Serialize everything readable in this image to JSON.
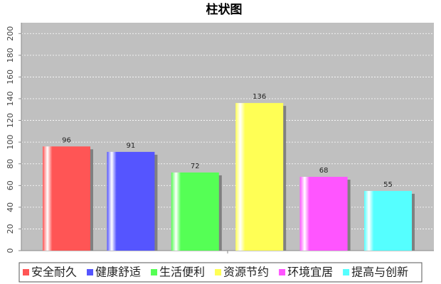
{
  "chart_data": {
    "type": "bar",
    "title": "柱状图",
    "ylim": [
      0,
      210
    ],
    "yticks": [
      0,
      20,
      40,
      60,
      80,
      100,
      120,
      140,
      160,
      180,
      200
    ],
    "grid": true,
    "series": [
      {
        "name": "安全耐久",
        "color": "#ff5555",
        "values": [
          96
        ]
      },
      {
        "name": "健康舒适",
        "color": "#5555ff",
        "values": [
          91
        ]
      },
      {
        "name": "生活便利",
        "color": "#55ff55",
        "values": [
          72
        ]
      },
      {
        "name": "资源节约",
        "color": "#ffff55",
        "values": [
          136
        ]
      },
      {
        "name": "环境宜居",
        "color": "#ff55ff",
        "values": [
          68
        ]
      },
      {
        "name": "提高与创新",
        "color": "#55ffff",
        "values": [
          55
        ]
      }
    ]
  }
}
